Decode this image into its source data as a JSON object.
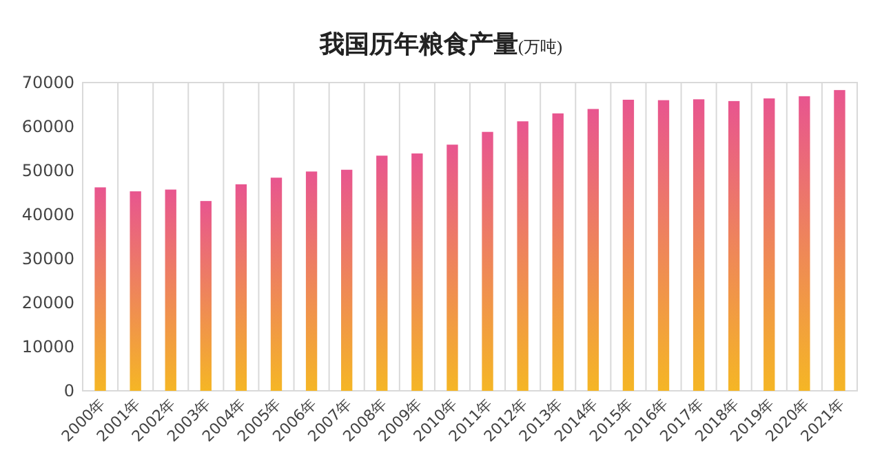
{
  "chart_data": {
    "type": "bar",
    "title": "我国历年粮食产量(万吨)",
    "categories": [
      "2000年",
      "2001年",
      "2002年",
      "2003年",
      "2004年",
      "2005年",
      "2006年",
      "2007年",
      "2008年",
      "2009年",
      "2010年",
      "2011年",
      "2012年",
      "2013年",
      "2014年",
      "2015年",
      "2016年",
      "2017年",
      "2018年",
      "2019年",
      "2020年",
      "2021年"
    ],
    "series": [
      {
        "color": "#e8558f",
        "values": [
          46200,
          45300,
          45700,
          43100,
          46900,
          48400,
          49800,
          50200,
          53400,
          53900,
          55900,
          58800,
          61200,
          63000,
          64000,
          66100,
          66000,
          66200,
          65800,
          66400,
          66900,
          68300
        ]
      }
    ],
    "ylim": [
      0,
      70000
    ],
    "yticks": [
      0,
      10000,
      20000,
      30000,
      40000,
      50000,
      60000,
      70000
    ],
    "grid": "x"
  }
}
